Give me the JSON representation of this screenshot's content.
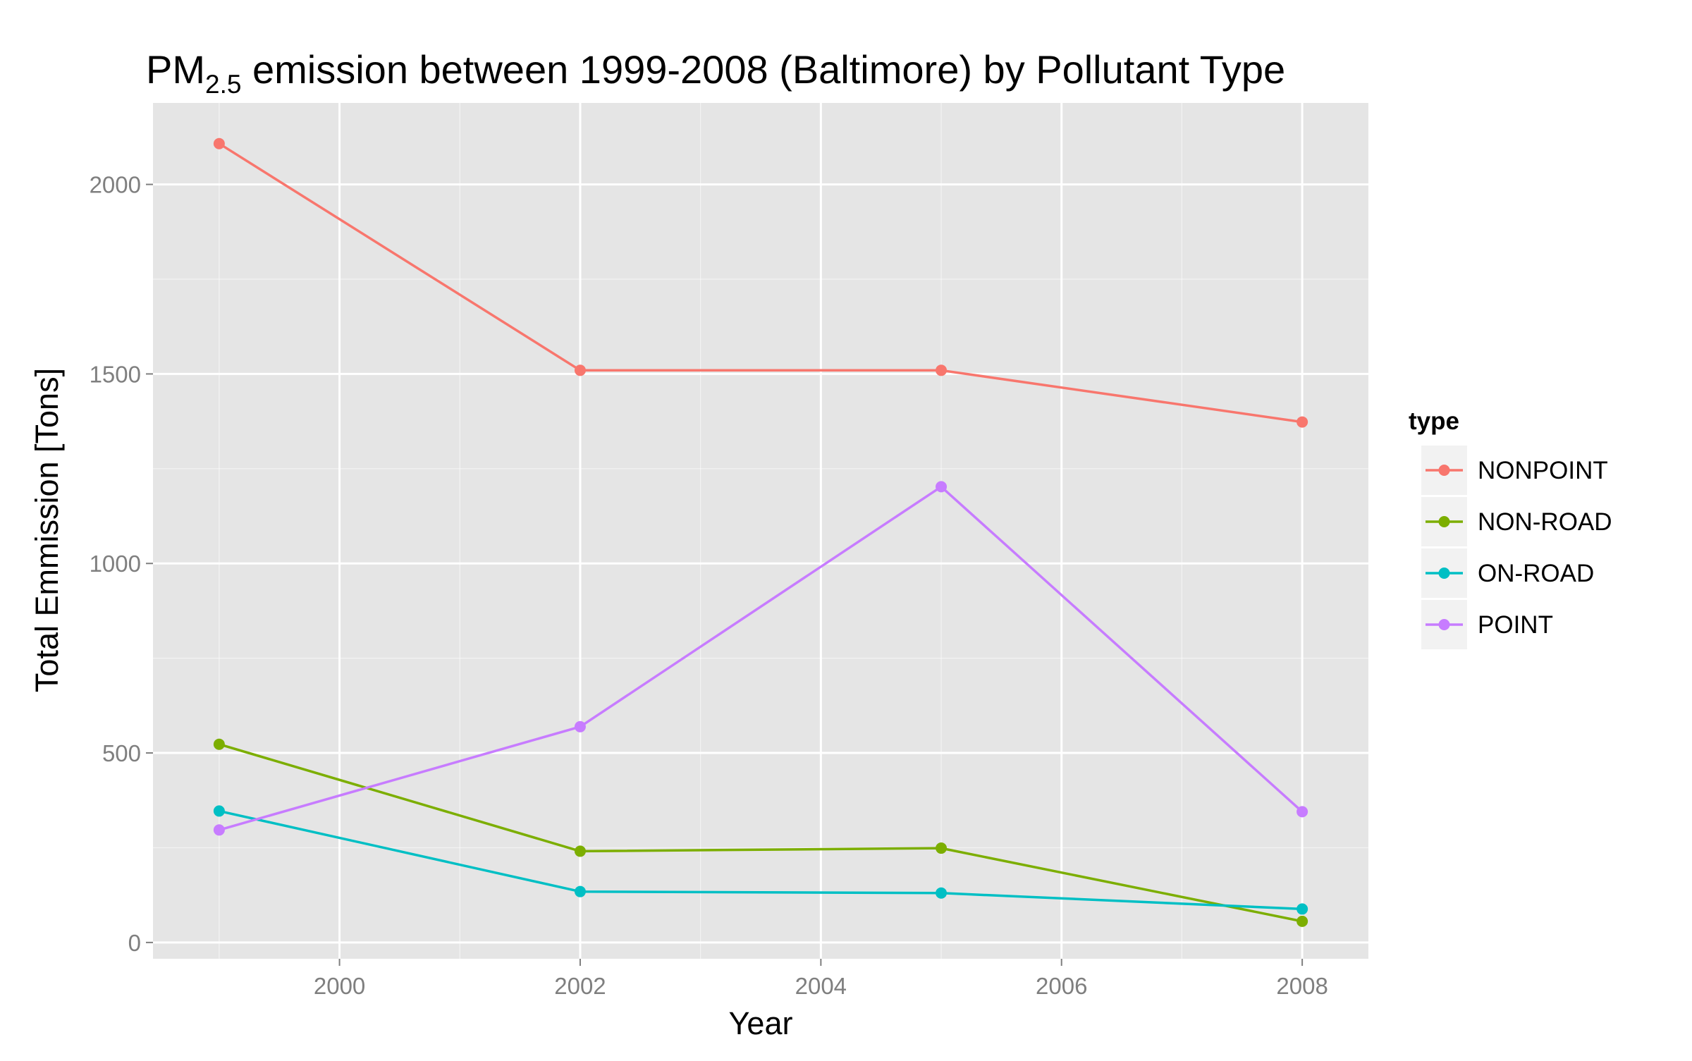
{
  "chart_data": {
    "type": "line",
    "title_main": "PM",
    "title_sub": "2.5",
    "title_rest": " emission between 1999-2008 (Baltimore) by Pollutant Type",
    "xlabel": "Year",
    "ylabel": "Total Emmission [Tons]",
    "x": [
      1999,
      2002,
      2005,
      2008
    ],
    "xlim": [
      1998.45,
      2008.55
    ],
    "ylim": [
      -43,
      2215
    ],
    "x_ticks": [
      2000,
      2002,
      2004,
      2006,
      2008
    ],
    "x_tick_labels": [
      "2000",
      "2002",
      "2004",
      "2006",
      "2008"
    ],
    "y_ticks": [
      0,
      500,
      1000,
      1500,
      2000
    ],
    "y_tick_labels": [
      "0",
      "500",
      "1000",
      "1500",
      "2000"
    ],
    "grid": true,
    "panel_background": "#e5e5e5",
    "grid_color": "#ffffff",
    "legend": {
      "title": "type",
      "position": "right"
    },
    "series": [
      {
        "name": "NONPOINT",
        "color": "#f8766d",
        "values": [
          2107.6,
          1509.5,
          1509.5,
          1373.2
        ]
      },
      {
        "name": "NON-ROAD",
        "color": "#7cae00",
        "values": [
          522.9,
          240.8,
          248.9,
          55.8
        ]
      },
      {
        "name": "ON-ROAD",
        "color": "#00bfc4",
        "values": [
          346.8,
          134.3,
          130.4,
          88.3
        ]
      },
      {
        "name": "POINT",
        "color": "#c77cff",
        "values": [
          296.8,
          569.3,
          1202.5,
          344.98
        ]
      }
    ]
  }
}
